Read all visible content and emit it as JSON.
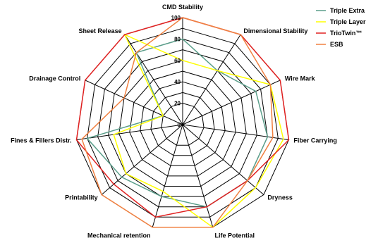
{
  "chart_data": {
    "type": "radar",
    "categories": [
      "CMD Stability",
      "Dimensional Stability",
      "Wire Mark",
      "Fiber Carrying",
      "Dryness",
      "Life Potential",
      "Mechanical retention",
      "Printability",
      "Fines & Fillers Distr.",
      "Drainage Control",
      "Sheet Release"
    ],
    "rlim": [
      0,
      100
    ],
    "ticks": [
      "0",
      "20",
      "40",
      "60",
      "80",
      "100"
    ],
    "grid": true,
    "legend_position": "top-right",
    "series": [
      {
        "name": "Triple Extra",
        "color": "#5a9e8a",
        "values": [
          80,
          60,
          75,
          80,
          80,
          80,
          70,
          75,
          90,
          20,
          80
        ]
      },
      {
        "name": "Triple Layer",
        "color": "#ffff00",
        "values": [
          60,
          60,
          90,
          95,
          90,
          100,
          65,
          70,
          65,
          20,
          100
        ]
      },
      {
        "name": "TrioTwin™",
        "color": "#e02020",
        "values": [
          100,
          100,
          100,
          100,
          80,
          80,
          90,
          85,
          100,
          100,
          100
        ]
      },
      {
        "name": "ESB",
        "color": "#f08040",
        "values": [
          100,
          100,
          90,
          85,
          80,
          100,
          100,
          100,
          95,
          60,
          80
        ]
      }
    ]
  }
}
